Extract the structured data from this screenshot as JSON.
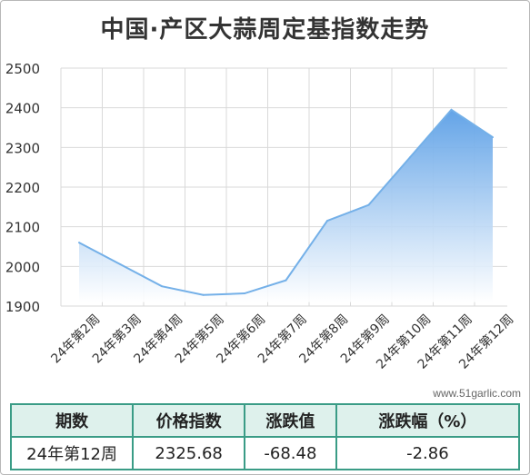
{
  "title": "中国·产区大蒜周定基指数走势",
  "watermark": "www.51garlic.com",
  "colors": {
    "line": "#74b0e8",
    "fill_top": "#5b9fe6",
    "fill_bottom": "#ffffff",
    "grid": "#d9d9d9",
    "table_border": "#3a9c86",
    "table_header_bg": "#def1ec"
  },
  "chart_data": {
    "type": "area",
    "x": [
      "24年第2周",
      "24年第3周",
      "24年第4周",
      "24年第5周",
      "24年第6周",
      "24年第7周",
      "24年第8周",
      "24年第9周",
      "24年第10周",
      "24年第11周",
      "24年第12周"
    ],
    "series": [
      {
        "values": [
          2060,
          2005,
          1950,
          1928,
          1932,
          1965,
          2115,
          2155,
          2275,
          2395,
          2325.68
        ]
      }
    ],
    "yticks": [
      1900,
      2000,
      2100,
      2200,
      2300,
      2400,
      2500
    ],
    "ylim": [
      1900,
      2500
    ],
    "grid": true,
    "legend": false
  },
  "table": {
    "headers": [
      "期数",
      "价格指数",
      "涨跌值",
      "涨跌幅（%）"
    ],
    "row": [
      "24年第12周",
      "2325.68",
      "-68.48",
      "-2.86"
    ]
  }
}
